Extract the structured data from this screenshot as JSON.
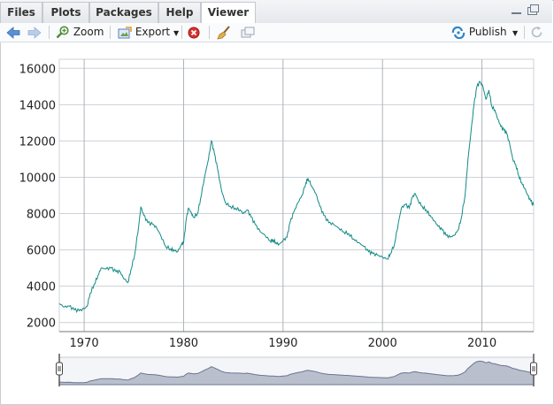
{
  "tabs": [
    {
      "label": "Files"
    },
    {
      "label": "Plots"
    },
    {
      "label": "Packages"
    },
    {
      "label": "Help"
    },
    {
      "label": "Viewer",
      "active": true
    }
  ],
  "toolbar": {
    "zoom_label": "Zoom",
    "export_label": "Export",
    "publish_label": "Publish",
    "icons": [
      "back-arrow-icon",
      "forward-arrow-icon",
      "zoom-icon",
      "export-icon",
      "clear-icon",
      "broom-icon",
      "popout-icon",
      "publish-icon",
      "refresh-icon"
    ]
  },
  "colors": {
    "series": "#138a86",
    "navigator_fill": "#b9bfcc",
    "navigator_stroke": "#6b7590"
  },
  "chart_data": {
    "type": "line",
    "title": "",
    "xlabel": "",
    "ylabel": "",
    "xlim": [
      1967.5,
      2015.2
    ],
    "ylim": [
      1500,
      16500
    ],
    "x_ticks": [
      1970,
      1980,
      1990,
      2000,
      2010
    ],
    "y_ticks": [
      2000,
      4000,
      6000,
      8000,
      10000,
      12000,
      14000,
      16000
    ],
    "grid": true,
    "navigator": true,
    "series": [
      {
        "points": [
          [
            1967.5,
            3050
          ],
          [
            1968.0,
            2850
          ],
          [
            1968.5,
            2900
          ],
          [
            1969.0,
            2700
          ],
          [
            1969.5,
            2650
          ],
          [
            1970.0,
            2750
          ],
          [
            1970.3,
            2900
          ],
          [
            1970.6,
            3600
          ],
          [
            1971.0,
            4100
          ],
          [
            1971.4,
            4600
          ],
          [
            1971.7,
            5000
          ],
          [
            1972.2,
            4950
          ],
          [
            1972.7,
            5000
          ],
          [
            1973.2,
            4800
          ],
          [
            1973.6,
            4800
          ],
          [
            1973.9,
            4500
          ],
          [
            1974.4,
            4200
          ],
          [
            1974.7,
            4900
          ],
          [
            1975.1,
            5800
          ],
          [
            1975.5,
            7400
          ],
          [
            1975.7,
            8350
          ],
          [
            1976.0,
            7900
          ],
          [
            1976.4,
            7500
          ],
          [
            1976.9,
            7400
          ],
          [
            1977.3,
            7200
          ],
          [
            1977.7,
            6800
          ],
          [
            1978.2,
            6200
          ],
          [
            1978.7,
            6050
          ],
          [
            1979.0,
            6000
          ],
          [
            1979.4,
            5900
          ],
          [
            1979.8,
            6300
          ],
          [
            1980.0,
            6400
          ],
          [
            1980.3,
            7800
          ],
          [
            1980.5,
            8300
          ],
          [
            1980.8,
            8000
          ],
          [
            1981.0,
            7800
          ],
          [
            1981.4,
            8000
          ],
          [
            1981.7,
            8800
          ],
          [
            1982.1,
            10000
          ],
          [
            1982.5,
            11000
          ],
          [
            1982.8,
            12000
          ],
          [
            1983.1,
            11300
          ],
          [
            1983.4,
            10500
          ],
          [
            1983.8,
            9300
          ],
          [
            1984.2,
            8600
          ],
          [
            1984.7,
            8400
          ],
          [
            1985.2,
            8300
          ],
          [
            1985.7,
            8200
          ],
          [
            1986.0,
            8000
          ],
          [
            1986.4,
            8200
          ],
          [
            1986.8,
            7800
          ],
          [
            1987.2,
            7400
          ],
          [
            1987.7,
            7000
          ],
          [
            1988.2,
            6800
          ],
          [
            1988.7,
            6500
          ],
          [
            1989.0,
            6550
          ],
          [
            1989.3,
            6400
          ],
          [
            1989.6,
            6300
          ],
          [
            1990.0,
            6500
          ],
          [
            1990.4,
            6700
          ],
          [
            1990.7,
            7500
          ],
          [
            1991.1,
            8100
          ],
          [
            1991.5,
            8600
          ],
          [
            1991.9,
            9000
          ],
          [
            1992.3,
            9700
          ],
          [
            1992.5,
            9950
          ],
          [
            1992.9,
            9500
          ],
          [
            1993.3,
            9100
          ],
          [
            1993.7,
            8400
          ],
          [
            1994.1,
            7900
          ],
          [
            1994.6,
            7500
          ],
          [
            1995.1,
            7400
          ],
          [
            1995.6,
            7200
          ],
          [
            1996.1,
            7000
          ],
          [
            1996.6,
            6900
          ],
          [
            1997.1,
            6600
          ],
          [
            1997.6,
            6400
          ],
          [
            1998.1,
            6200
          ],
          [
            1998.6,
            5900
          ],
          [
            1999.0,
            5800
          ],
          [
            1999.5,
            5700
          ],
          [
            2000.0,
            5600
          ],
          [
            2000.5,
            5500
          ],
          [
            2000.8,
            5800
          ],
          [
            2001.2,
            6300
          ],
          [
            2001.6,
            7500
          ],
          [
            2001.9,
            8300
          ],
          [
            2002.3,
            8500
          ],
          [
            2002.7,
            8300
          ],
          [
            2003.0,
            8900
          ],
          [
            2003.3,
            9100
          ],
          [
            2003.6,
            8700
          ],
          [
            2004.0,
            8400
          ],
          [
            2004.4,
            8200
          ],
          [
            2004.8,
            7900
          ],
          [
            2005.2,
            7600
          ],
          [
            2005.6,
            7300
          ],
          [
            2006.0,
            7100
          ],
          [
            2006.4,
            6800
          ],
          [
            2006.8,
            6700
          ],
          [
            2007.2,
            6800
          ],
          [
            2007.6,
            7100
          ],
          [
            2007.9,
            7700
          ],
          [
            2008.3,
            9000
          ],
          [
            2008.6,
            11000
          ],
          [
            2008.9,
            12500
          ],
          [
            2009.2,
            14000
          ],
          [
            2009.5,
            15000
          ],
          [
            2009.8,
            15250
          ],
          [
            2010.1,
            15000
          ],
          [
            2010.4,
            14300
          ],
          [
            2010.7,
            14800
          ],
          [
            2011.0,
            13900
          ],
          [
            2011.3,
            13700
          ],
          [
            2011.6,
            13200
          ],
          [
            2011.9,
            12800
          ],
          [
            2012.2,
            12600
          ],
          [
            2012.5,
            12400
          ],
          [
            2012.8,
            11800
          ],
          [
            2013.1,
            11000
          ],
          [
            2013.4,
            10700
          ],
          [
            2013.7,
            10100
          ],
          [
            2014.0,
            9700
          ],
          [
            2014.3,
            9400
          ],
          [
            2014.6,
            9000
          ],
          [
            2014.9,
            8700
          ],
          [
            2015.2,
            8450
          ]
        ]
      }
    ]
  }
}
